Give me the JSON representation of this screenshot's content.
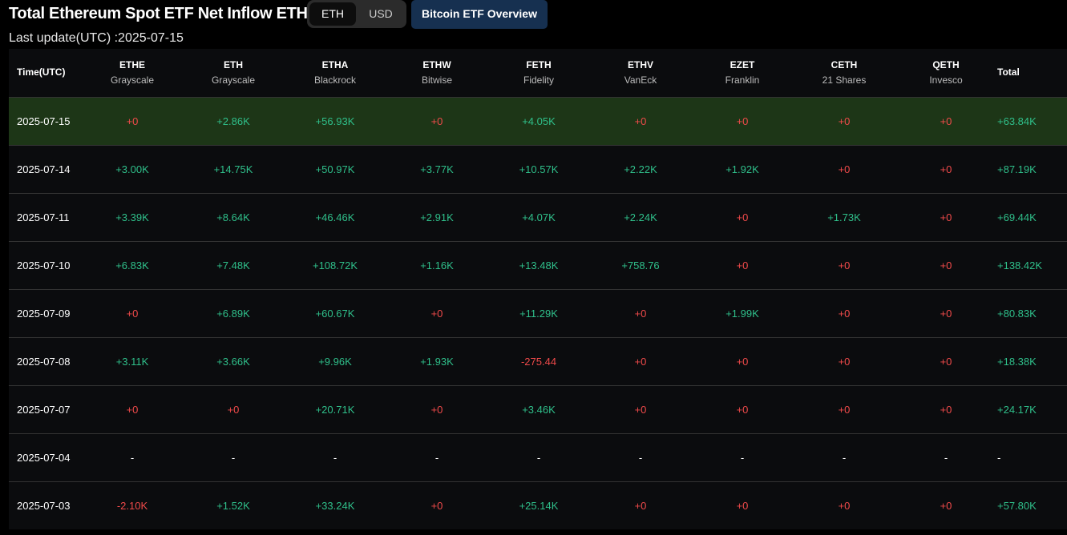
{
  "header": {
    "title": "Total Ethereum Spot ETF Net Inflow ETH",
    "toggle": [
      "ETH",
      "USD"
    ],
    "button": "Bitcoin ETF Overview",
    "last_update": "Last update(UTC) :2025-07-15"
  },
  "table": {
    "columns": [
      {
        "ticker": "Time(UTC)"
      },
      {
        "ticker": "ETHE",
        "issuer": "Grayscale"
      },
      {
        "ticker": "ETH",
        "issuer": "Grayscale"
      },
      {
        "ticker": "ETHA",
        "issuer": "Blackrock"
      },
      {
        "ticker": "ETHW",
        "issuer": "Bitwise"
      },
      {
        "ticker": "FETH",
        "issuer": "Fidelity"
      },
      {
        "ticker": "ETHV",
        "issuer": "VanEck"
      },
      {
        "ticker": "EZET",
        "issuer": "Franklin"
      },
      {
        "ticker": "CETH",
        "issuer": "21 Shares"
      },
      {
        "ticker": "QETH",
        "issuer": "Invesco"
      },
      {
        "ticker": "Total"
      }
    ],
    "rows": [
      [
        "2025-07-15",
        "+0",
        "+2.86K",
        "+56.93K",
        "+0",
        "+4.05K",
        "+0",
        "+0",
        "+0",
        "+0",
        "+63.84K"
      ],
      [
        "2025-07-14",
        "+3.00K",
        "+14.75K",
        "+50.97K",
        "+3.77K",
        "+10.57K",
        "+2.22K",
        "+1.92K",
        "+0",
        "+0",
        "+87.19K"
      ],
      [
        "2025-07-11",
        "+3.39K",
        "+8.64K",
        "+46.46K",
        "+2.91K",
        "+4.07K",
        "+2.24K",
        "+0",
        "+1.73K",
        "+0",
        "+69.44K"
      ],
      [
        "2025-07-10",
        "+6.83K",
        "+7.48K",
        "+108.72K",
        "+1.16K",
        "+13.48K",
        "+758.76",
        "+0",
        "+0",
        "+0",
        "+138.42K"
      ],
      [
        "2025-07-09",
        "+0",
        "+6.89K",
        "+60.67K",
        "+0",
        "+11.29K",
        "+0",
        "+1.99K",
        "+0",
        "+0",
        "+80.83K"
      ],
      [
        "2025-07-08",
        "+3.11K",
        "+3.66K",
        "+9.96K",
        "+1.93K",
        "-275.44",
        "+0",
        "+0",
        "+0",
        "+0",
        "+18.38K"
      ],
      [
        "2025-07-07",
        "+0",
        "+0",
        "+20.71K",
        "+0",
        "+3.46K",
        "+0",
        "+0",
        "+0",
        "+0",
        "+24.17K"
      ],
      [
        "2025-07-04",
        "-",
        "-",
        "-",
        "-",
        "-",
        "-",
        "-",
        "-",
        "-",
        "-"
      ],
      [
        "2025-07-03",
        "-2.10K",
        "+1.52K",
        "+33.24K",
        "+0",
        "+25.14K",
        "+0",
        "+0",
        "+0",
        "+0",
        "+57.80K"
      ]
    ]
  }
}
